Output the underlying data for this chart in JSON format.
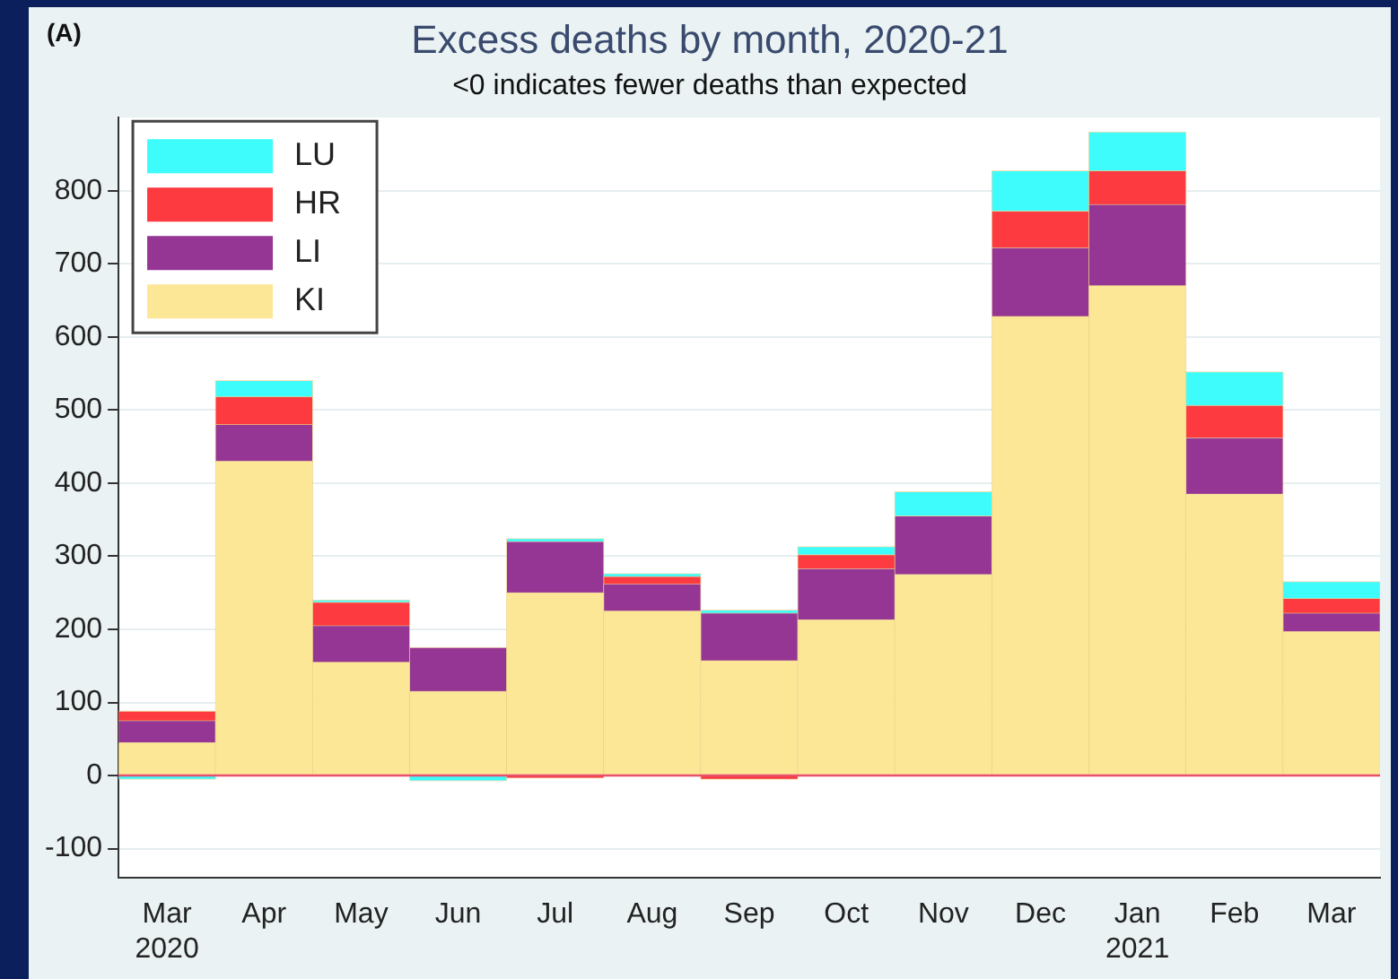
{
  "chart_data": {
    "type": "bar",
    "title": "Excess deaths by month, 2020-21",
    "subtitle": "<0 indicates fewer deaths than expected",
    "annotations": [
      "(A)"
    ],
    "categories": [
      "Mar 2020",
      "Apr",
      "May",
      "Jun",
      "Jul",
      "Aug",
      "Sep",
      "Oct",
      "Nov",
      "Dec",
      "Jan 2021",
      "Feb",
      "Mar"
    ],
    "stacked": true,
    "series": [
      {
        "name": "KI",
        "color": "#fce796",
        "values": [
          45,
          430,
          155,
          115,
          250,
          225,
          157,
          213,
          275,
          628,
          670,
          385,
          197
        ]
      },
      {
        "name": "LI",
        "color": "#953594",
        "values": [
          30,
          50,
          50,
          60,
          70,
          37,
          65,
          70,
          80,
          94,
          111,
          77,
          25
        ]
      },
      {
        "name": "HR",
        "color": "#fc3a3f",
        "values": [
          13,
          38,
          32,
          0,
          -3,
          10,
          -5,
          19,
          0,
          50,
          46,
          44,
          20
        ]
      },
      {
        "name": "LU",
        "color": "#3ffcfc",
        "values": [
          -5,
          22,
          3,
          -7,
          4,
          4,
          4,
          11,
          33,
          55,
          53,
          46,
          23
        ]
      }
    ],
    "ylim": [
      -140,
      900
    ],
    "yticks": [
      -100,
      0,
      100,
      200,
      300,
      400,
      500,
      600,
      700,
      800
    ],
    "grid": "y",
    "legend": "top left",
    "ref_lines": [
      {
        "axis": "y",
        "value": 0,
        "color": "#e8506e"
      }
    ]
  }
}
